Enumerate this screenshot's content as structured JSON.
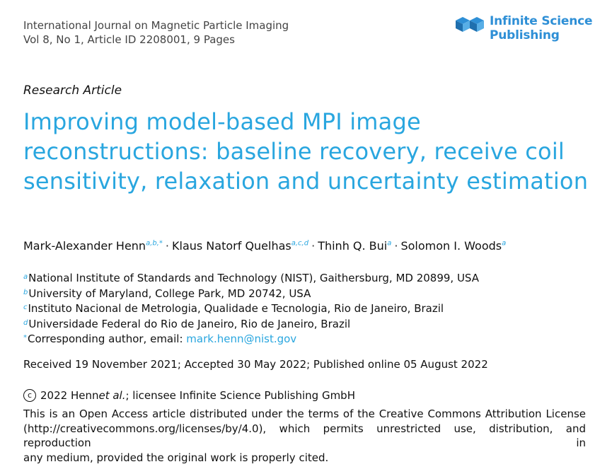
{
  "journal": {
    "name": "International Journal on Magnetic Particle Imaging",
    "issue": "Vol 8, No 1, Article ID 2208001, 9 Pages"
  },
  "publisher": {
    "line1": "Infinite Science",
    "line2": "Publishing",
    "logo_icon": "cube-logo-icon",
    "color": "#2e8fd6"
  },
  "article_type": "Research Article",
  "title": "Improving model-based MPI image reconstructions: baseline recovery, receive coil sensitivity, relaxation and uncertainty estimation",
  "title_color": "#29a6df",
  "authors": [
    {
      "name": "Mark-Alexander Henn",
      "sup": "a,b,*"
    },
    {
      "name": "Klaus Natorf Quelhas",
      "sup": "a,c,d"
    },
    {
      "name": "Thinh Q. Bui",
      "sup": "a"
    },
    {
      "name": "Solomon I. Woods",
      "sup": "a"
    }
  ],
  "author_separator": "·",
  "affiliations": [
    {
      "sup": "a",
      "text": "National Institute of Standards and Technology (NIST), Gaithersburg, MD 20899, USA"
    },
    {
      "sup": "b",
      "text": "University of Maryland, College Park, MD 20742, USA"
    },
    {
      "sup": "c",
      "text": "Instituto Nacional de Metrologia, Qualidade e Tecnologia, Rio de Janeiro, Brazil"
    },
    {
      "sup": "d",
      "text": "Universidade Federal do Rio de Janeiro, Rio de Janeiro, Brazil"
    }
  ],
  "corresponding": {
    "sup": "*",
    "label": "Corresponding author, email: ",
    "email": "mark.henn@nist.gov"
  },
  "dates": "Received 19 November 2021; Accepted 30 May 2022; Published online 05 August 2022",
  "copyright": {
    "symbol": "c",
    "year_author": "2022 Henn ",
    "etal": "et al.",
    "rest": "; licensee Infinite Science Publishing GmbH"
  },
  "license_lines": [
    "This is an Open Access article distributed under the terms of the Creative Commons Attribution License",
    "(http://creativecommons.org/licenses/by/4.0), which permits unrestricted use, distribution, and reproduction in",
    "any medium, provided the original work is properly cited."
  ]
}
